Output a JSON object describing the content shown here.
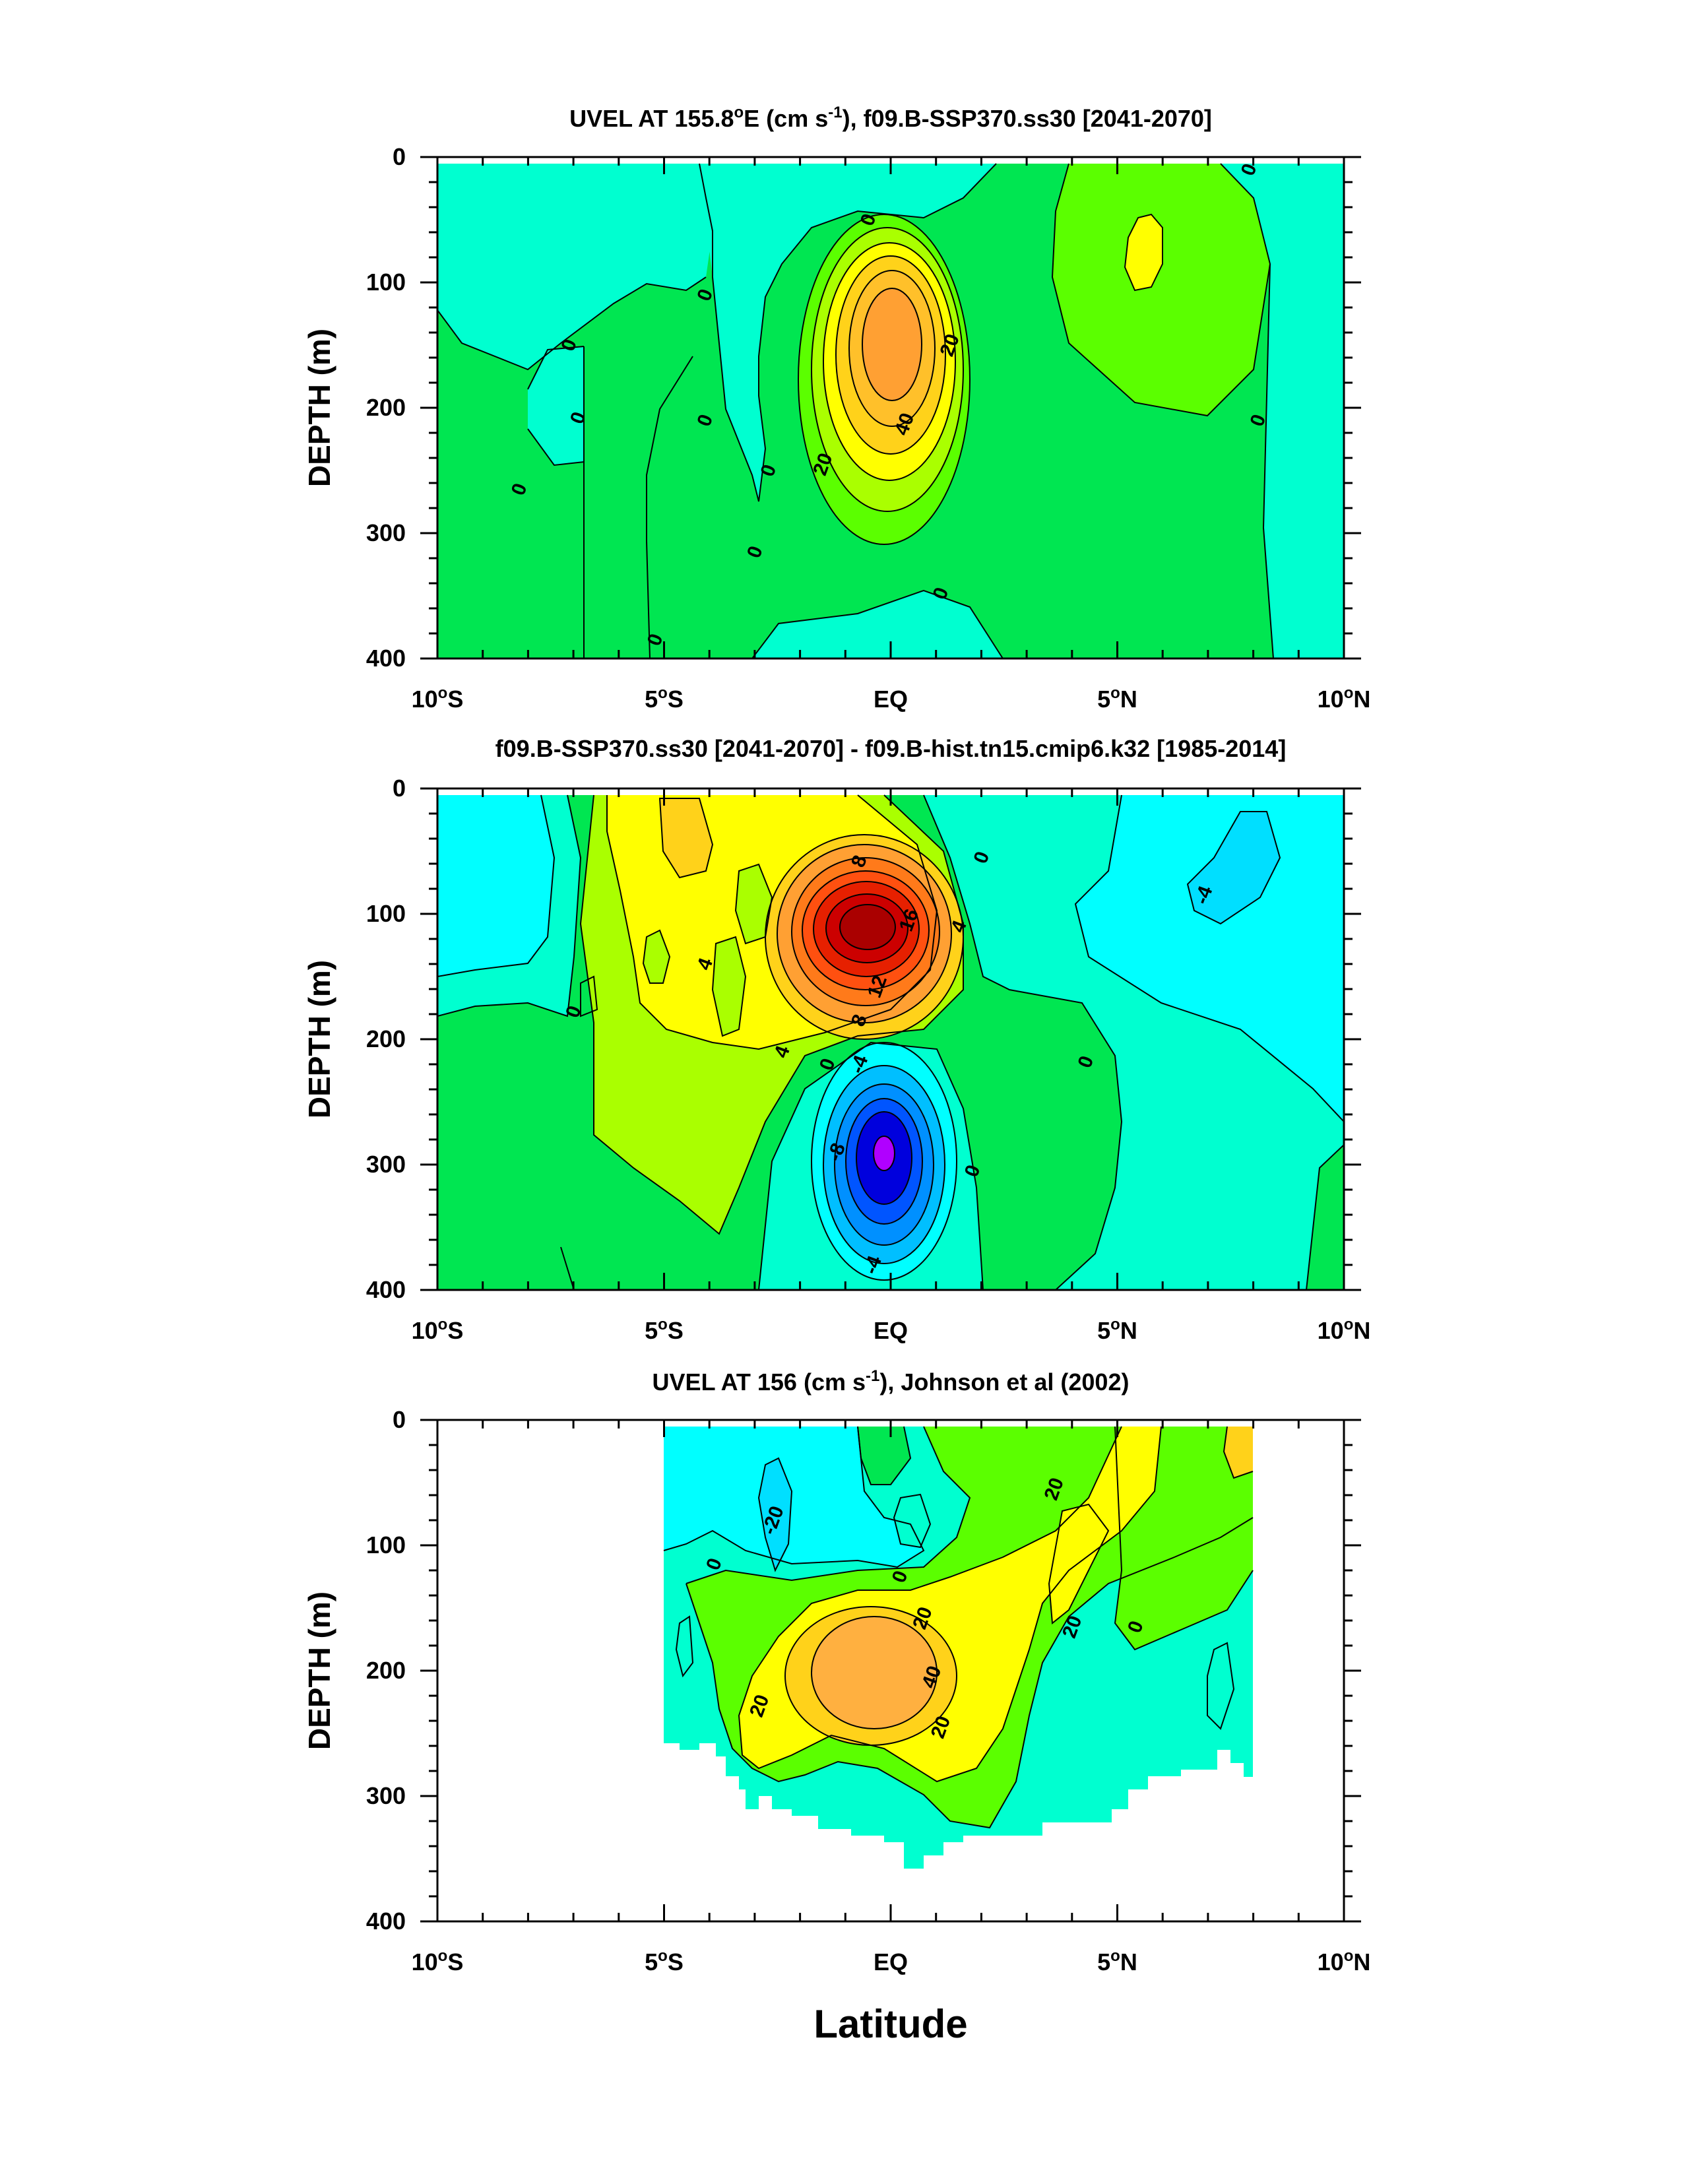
{
  "figure": {
    "xlabel": "Latitude",
    "palette": {
      "cyan": "#00ffff",
      "aqua_green": "#00ffd0",
      "green": "#00e651",
      "light_green": "#5bff00",
      "yellow_green": "#aaff00",
      "yellow": "#ffff00",
      "gold": "#ffd21a",
      "orange": "#ffa033",
      "dark_orange": "#ff6600",
      "red": "#e60000",
      "dark_red": "#b30000",
      "sky": "#00bfff",
      "blue": "#0066ff",
      "deep_blue": "#0000dd",
      "purple": "#b000ff"
    }
  },
  "chart_data": [
    {
      "type": "contour",
      "title_pre": "UVEL AT 155.8",
      "title_deg": "o",
      "title_mid": "E (cm s",
      "title_sup": "-1",
      "title_post": "), f09.B-SSP370.ss30 [2041-2070]",
      "ylabel": "DEPTH (m)",
      "xlim": [
        -10,
        10
      ],
      "ylim": [
        400,
        0
      ],
      "x_ticks": [
        {
          "value": -10,
          "num": "10",
          "hem": "S"
        },
        {
          "value": -5,
          "num": "5",
          "hem": "S"
        },
        {
          "value": 0,
          "num": "EQ",
          "hem": ""
        },
        {
          "value": 5,
          "num": "5",
          "hem": "N"
        },
        {
          "value": 10,
          "num": "10",
          "hem": "N"
        }
      ],
      "y_ticks": [
        "0",
        "100",
        "200",
        "300",
        "400"
      ],
      "y_tick_values": [
        0,
        100,
        200,
        300,
        400
      ],
      "contour_labels": [
        {
          "text": "0",
          "lat": 7.9,
          "depth": 10
        },
        {
          "text": "0",
          "lat": -0.5,
          "depth": 50
        },
        {
          "text": "0",
          "lat": -4.1,
          "depth": 110
        },
        {
          "text": "0",
          "lat": -7.1,
          "depth": 150
        },
        {
          "text": "0",
          "lat": -6.9,
          "depth": 208
        },
        {
          "text": "0",
          "lat": -4.1,
          "depth": 210
        },
        {
          "text": "0",
          "lat": -2.7,
          "depth": 250
        },
        {
          "text": "0",
          "lat": -8.2,
          "depth": 265
        },
        {
          "text": "0",
          "lat": -3.0,
          "depth": 315
        },
        {
          "text": "0",
          "lat": -5.2,
          "depth": 385
        },
        {
          "text": "0",
          "lat": 1.1,
          "depth": 348
        },
        {
          "text": "0",
          "lat": 8.1,
          "depth": 210
        },
        {
          "text": "20",
          "lat": 1.3,
          "depth": 150
        },
        {
          "text": "20",
          "lat": -1.5,
          "depth": 245
        },
        {
          "text": "40",
          "lat": 0.3,
          "depth": 213
        }
      ]
    },
    {
      "type": "contour",
      "title": "f09.B-SSP370.ss30 [2041-2070] - f09.B-hist.tn15.cmip6.k32 [1985-2014]",
      "ylabel": "DEPTH (m)",
      "xlim": [
        -10,
        10
      ],
      "ylim": [
        400,
        0
      ],
      "x_ticks": [
        {
          "value": -10,
          "num": "10",
          "hem": "S"
        },
        {
          "value": -5,
          "num": "5",
          "hem": "S"
        },
        {
          "value": 0,
          "num": "EQ",
          "hem": ""
        },
        {
          "value": 5,
          "num": "5",
          "hem": "N"
        },
        {
          "value": 10,
          "num": "10",
          "hem": "N"
        }
      ],
      "y_ticks": [
        "0",
        "100",
        "200",
        "300",
        "400"
      ],
      "y_tick_values": [
        0,
        100,
        200,
        300,
        400
      ],
      "contour_labels": [
        {
          "text": "0",
          "lat": 2.0,
          "depth": 55
        },
        {
          "text": "-4",
          "lat": 6.9,
          "depth": 85
        },
        {
          "text": "8",
          "lat": -0.7,
          "depth": 58
        },
        {
          "text": "16",
          "lat": 0.4,
          "depth": 105
        },
        {
          "text": "4",
          "lat": 1.5,
          "depth": 110
        },
        {
          "text": "4",
          "lat": -4.1,
          "depth": 140
        },
        {
          "text": "12",
          "lat": -0.3,
          "depth": 158
        },
        {
          "text": "8",
          "lat": -0.7,
          "depth": 185
        },
        {
          "text": "0",
          "lat": -7.0,
          "depth": 178
        },
        {
          "text": "4",
          "lat": -2.4,
          "depth": 210
        },
        {
          "text": "0",
          "lat": -1.4,
          "depth": 220
        },
        {
          "text": "-4",
          "lat": -0.7,
          "depth": 220
        },
        {
          "text": "0",
          "lat": 4.3,
          "depth": 218
        },
        {
          "text": "-8",
          "lat": -1.2,
          "depth": 290
        },
        {
          "text": "0",
          "lat": 1.8,
          "depth": 305
        },
        {
          "text": "-4",
          "lat": -0.4,
          "depth": 380
        }
      ]
    },
    {
      "type": "contour",
      "title_pre": "UVEL AT 156 (cm s",
      "title_sup": "-1",
      "title_post": "), Johnson et al (2002)",
      "ylabel": "DEPTH (m)",
      "xlim": [
        -10,
        10
      ],
      "ylim": [
        400,
        0
      ],
      "data_lat_range": [
        -5,
        8
      ],
      "x_ticks": [
        {
          "value": -10,
          "num": "10",
          "hem": "S"
        },
        {
          "value": -5,
          "num": "5",
          "hem": "S"
        },
        {
          "value": 0,
          "num": "EQ",
          "hem": ""
        },
        {
          "value": 5,
          "num": "5",
          "hem": "N"
        },
        {
          "value": 10,
          "num": "10",
          "hem": "N"
        }
      ],
      "y_ticks": [
        "0",
        "100",
        "200",
        "300",
        "400"
      ],
      "y_tick_values": [
        0,
        100,
        200,
        300,
        400
      ],
      "contour_labels": [
        {
          "text": "-20",
          "lat": -2.6,
          "depth": 80
        },
        {
          "text": "0",
          "lat": -3.9,
          "depth": 115
        },
        {
          "text": "0",
          "lat": 0.2,
          "depth": 125
        },
        {
          "text": "20",
          "lat": 3.6,
          "depth": 55
        },
        {
          "text": "20",
          "lat": 0.7,
          "depth": 158
        },
        {
          "text": "20",
          "lat": 4.0,
          "depth": 165
        },
        {
          "text": "0",
          "lat": 5.4,
          "depth": 165
        },
        {
          "text": "40",
          "lat": 0.9,
          "depth": 205
        },
        {
          "text": "20",
          "lat": -2.9,
          "depth": 228
        },
        {
          "text": "20",
          "lat": 1.1,
          "depth": 245
        }
      ]
    }
  ]
}
